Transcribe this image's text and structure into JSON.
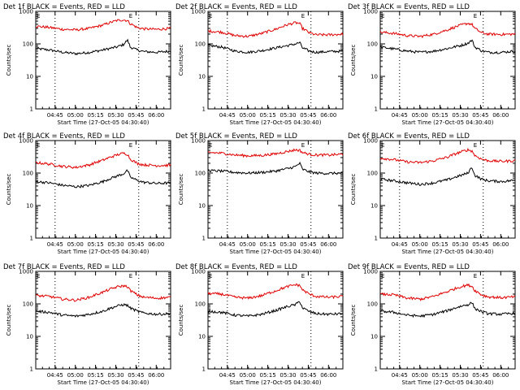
{
  "figure": {
    "panel_titles": [
      "Det 1f BLACK = Events, RED = LLD",
      "Det 2f BLACK = Events, RED = LLD",
      "Det 3f BLACK = Events, RED = LLD",
      "Det 4f BLACK = Events, RED = LLD",
      "Det 5f BLACK = Events, RED = LLD",
      "Det 6f BLACK = Events, RED = LLD",
      "Det 7f BLACK = Events, RED = LLD",
      "Det 8f BLACK = Events, RED = LLD",
      "Det 9f BLACK = Events, RED = LLD"
    ],
    "xlabel": "Start Time (27-Oct-05 04:30:40)",
    "ylabel": "Counts/sec",
    "x_ticks": [
      "04:45",
      "05:00",
      "05:15",
      "05:30",
      "05:45",
      "06:00"
    ],
    "y_ticks": [
      "1",
      "10",
      "100",
      "1000"
    ],
    "marker_start": "E",
    "marker_end": "E",
    "colors": {
      "events": "#000000",
      "lld": "#e00000",
      "axes": "#000000",
      "background": "#ffffff"
    }
  },
  "chart_data": [
    {
      "type": "line",
      "title": "Det 1f BLACK = Events, RED = LLD",
      "xlabel": "Start Time (27-Oct-05 04:30:40)",
      "ylabel": "Counts/sec",
      "x_unit": "minutes after 04:30:40",
      "xlim": [
        0,
        100
      ],
      "ylim": [
        1,
        1000
      ],
      "y_scale": "log",
      "x_tick_labels": [
        "04:45",
        "05:00",
        "05:15",
        "05:30",
        "05:45",
        "06:00"
      ],
      "vertical_dotted_lines_at": [
        "04:45",
        "05:47"
      ],
      "x": [
        0,
        10,
        20,
        30,
        40,
        50,
        60,
        65,
        68,
        70,
        75,
        80,
        90,
        100
      ],
      "series": [
        {
          "name": "Events",
          "color": "#000000",
          "values": [
            72,
            65,
            55,
            50,
            55,
            65,
            80,
            95,
            130,
            80,
            65,
            58,
            55,
            60
          ]
        },
        {
          "name": "LLD",
          "color": "#e00000",
          "values": [
            350,
            320,
            280,
            270,
            300,
            380,
            520,
            550,
            520,
            420,
            320,
            290,
            280,
            300
          ]
        }
      ]
    },
    {
      "type": "line",
      "title": "Det 2f BLACK = Events, RED = LLD",
      "xlabel": "Start Time (27-Oct-05 04:30:40)",
      "ylabel": "Counts/sec",
      "x_unit": "minutes after 04:30:40",
      "xlim": [
        0,
        100
      ],
      "ylim": [
        1,
        1000
      ],
      "y_scale": "log",
      "x_tick_labels": [
        "04:45",
        "05:00",
        "05:15",
        "05:30",
        "05:45",
        "06:00"
      ],
      "vertical_dotted_lines_at": [
        "04:45",
        "05:47"
      ],
      "x": [
        0,
        10,
        20,
        30,
        40,
        50,
        60,
        65,
        68,
        70,
        75,
        80,
        90,
        100
      ],
      "series": [
        {
          "name": "Events",
          "color": "#000000",
          "values": [
            90,
            80,
            60,
            55,
            62,
            75,
            90,
            100,
            110,
            75,
            60,
            55,
            58,
            60
          ]
        },
        {
          "name": "LLD",
          "color": "#e00000",
          "values": [
            250,
            230,
            180,
            170,
            210,
            280,
            400,
            450,
            420,
            300,
            220,
            190,
            190,
            200
          ]
        }
      ]
    },
    {
      "type": "line",
      "title": "Det 3f BLACK = Events, RED = LLD",
      "xlabel": "Start Time (27-Oct-05 04:30:40)",
      "ylabel": "Counts/sec",
      "x_unit": "minutes after 04:30:40",
      "xlim": [
        0,
        100
      ],
      "ylim": [
        1,
        1000
      ],
      "y_scale": "log",
      "x_tick_labels": [
        "04:45",
        "05:00",
        "05:15",
        "05:30",
        "05:45",
        "06:00"
      ],
      "vertical_dotted_lines_at": [
        "04:45",
        "05:47"
      ],
      "x": [
        0,
        10,
        20,
        30,
        40,
        50,
        60,
        65,
        68,
        70,
        75,
        80,
        90,
        100
      ],
      "series": [
        {
          "name": "Events",
          "color": "#000000",
          "values": [
            80,
            70,
            60,
            55,
            60,
            72,
            90,
            105,
            130,
            80,
            62,
            55,
            55,
            60
          ]
        },
        {
          "name": "LLD",
          "color": "#e00000",
          "values": [
            230,
            210,
            180,
            170,
            200,
            270,
            380,
            430,
            400,
            300,
            220,
            200,
            195,
            200
          ]
        }
      ]
    },
    {
      "type": "line",
      "title": "Det 4f BLACK = Events, RED = LLD",
      "xlabel": "Start Time (27-Oct-05 04:30:40)",
      "ylabel": "Counts/sec",
      "x_unit": "minutes after 04:30:40",
      "xlim": [
        0,
        100
      ],
      "ylim": [
        1,
        1000
      ],
      "y_scale": "log",
      "x_tick_labels": [
        "04:45",
        "05:00",
        "05:15",
        "05:30",
        "05:45",
        "06:00"
      ],
      "vertical_dotted_lines_at": [
        "04:45",
        "05:47"
      ],
      "x": [
        0,
        10,
        20,
        30,
        40,
        50,
        60,
        65,
        68,
        70,
        75,
        80,
        90,
        100
      ],
      "series": [
        {
          "name": "Events",
          "color": "#000000",
          "values": [
            55,
            50,
            42,
            38,
            42,
            55,
            80,
            95,
            120,
            75,
            60,
            52,
            48,
            50
          ]
        },
        {
          "name": "LLD",
          "color": "#e00000",
          "values": [
            210,
            190,
            160,
            150,
            180,
            250,
            360,
            410,
            380,
            270,
            200,
            180,
            170,
            175
          ]
        }
      ]
    },
    {
      "type": "line",
      "title": "Det 5f BLACK = Events, RED = LLD",
      "xlabel": "Start Time (27-Oct-05 04:30:40)",
      "ylabel": "Counts/sec",
      "x_unit": "minutes after 04:30:40",
      "xlim": [
        0,
        100
      ],
      "ylim": [
        1,
        1000
      ],
      "y_scale": "log",
      "x_tick_labels": [
        "04:45",
        "05:00",
        "05:15",
        "05:30",
        "05:45",
        "06:00"
      ],
      "vertical_dotted_lines_at": [
        "04:45",
        "05:47"
      ],
      "x": [
        0,
        10,
        20,
        30,
        40,
        50,
        60,
        65,
        68,
        70,
        75,
        80,
        90,
        100
      ],
      "series": [
        {
          "name": "Events",
          "color": "#000000",
          "values": [
            120,
            115,
            105,
            100,
            105,
            115,
            140,
            160,
            200,
            130,
            110,
            100,
            98,
            100
          ]
        },
        {
          "name": "LLD",
          "color": "#e00000",
          "values": [
            430,
            410,
            360,
            340,
            350,
            390,
            470,
            520,
            500,
            430,
            380,
            360,
            360,
            380
          ]
        }
      ]
    },
    {
      "type": "line",
      "title": "Det 6f BLACK = Events, RED = LLD",
      "xlabel": "Start Time (27-Oct-05 04:30:40)",
      "ylabel": "Counts/sec",
      "x_unit": "minutes after 04:30:40",
      "xlim": [
        0,
        100
      ],
      "ylim": [
        1,
        1000
      ],
      "y_scale": "log",
      "x_tick_labels": [
        "04:45",
        "05:00",
        "05:15",
        "05:30",
        "05:45",
        "06:00"
      ],
      "vertical_dotted_lines_at": [
        "04:45",
        "05:47"
      ],
      "x": [
        0,
        10,
        20,
        30,
        40,
        50,
        60,
        65,
        68,
        70,
        75,
        80,
        90,
        100
      ],
      "series": [
        {
          "name": "Events",
          "color": "#000000",
          "values": [
            65,
            58,
            50,
            45,
            50,
            62,
            85,
            100,
            150,
            85,
            65,
            58,
            55,
            60
          ]
        },
        {
          "name": "LLD",
          "color": "#e00000",
          "values": [
            290,
            260,
            220,
            210,
            240,
            310,
            450,
            520,
            480,
            350,
            270,
            240,
            230,
            240
          ]
        }
      ]
    },
    {
      "type": "line",
      "title": "Det 7f BLACK = Events, RED = LLD",
      "xlabel": "Start Time (27-Oct-05 04:30:40)",
      "ylabel": "Counts/sec",
      "x_unit": "minutes after 04:30:40",
      "xlim": [
        0,
        100
      ],
      "ylim": [
        1,
        1000
      ],
      "y_scale": "log",
      "x_tick_labels": [
        "04:45",
        "05:00",
        "05:15",
        "05:30",
        "05:45",
        "06:00"
      ],
      "vertical_dotted_lines_at": [
        "04:45",
        "05:47"
      ],
      "x": [
        0,
        10,
        20,
        30,
        40,
        50,
        60,
        65,
        68,
        70,
        75,
        80,
        90,
        100
      ],
      "series": [
        {
          "name": "Events",
          "color": "#000000",
          "values": [
            60,
            55,
            45,
            42,
            48,
            60,
            85,
            95,
            90,
            75,
            60,
            52,
            48,
            50
          ]
        },
        {
          "name": "LLD",
          "color": "#e00000",
          "values": [
            180,
            170,
            140,
            130,
            160,
            230,
            330,
            360,
            340,
            260,
            190,
            160,
            150,
            160
          ]
        }
      ]
    },
    {
      "type": "line",
      "title": "Det 8f BLACK = Events, RED = LLD",
      "xlabel": "Start Time (27-Oct-05 04:30:40)",
      "ylabel": "Counts/sec",
      "x_unit": "minutes after 04:30:40",
      "xlim": [
        0,
        100
      ],
      "ylim": [
        1,
        1000
      ],
      "y_scale": "log",
      "x_tick_labels": [
        "04:45",
        "05:00",
        "05:15",
        "05:30",
        "05:45",
        "06:00"
      ],
      "vertical_dotted_lines_at": [
        "04:45",
        "05:47"
      ],
      "x": [
        0,
        10,
        20,
        30,
        40,
        50,
        60,
        65,
        68,
        70,
        75,
        80,
        90,
        100
      ],
      "series": [
        {
          "name": "Events",
          "color": "#000000",
          "values": [
            60,
            55,
            45,
            42,
            48,
            62,
            85,
            95,
            120,
            75,
            58,
            50,
            48,
            50
          ]
        },
        {
          "name": "LLD",
          "color": "#e00000",
          "values": [
            210,
            200,
            160,
            150,
            180,
            250,
            350,
            390,
            370,
            270,
            200,
            170,
            160,
            170
          ]
        }
      ]
    },
    {
      "type": "line",
      "title": "Det 9f BLACK = Events, RED = LLD",
      "xlabel": "Start Time (27-Oct-05 04:30:40)",
      "ylabel": "Counts/sec",
      "x_unit": "minutes after 04:30:40",
      "xlim": [
        0,
        100
      ],
      "ylim": [
        1,
        1000
      ],
      "y_scale": "log",
      "x_tick_labels": [
        "04:45",
        "05:00",
        "05:15",
        "05:30",
        "05:45",
        "06:00"
      ],
      "vertical_dotted_lines_at": [
        "04:45",
        "05:47"
      ],
      "x": [
        0,
        10,
        20,
        30,
        40,
        50,
        60,
        65,
        68,
        70,
        75,
        80,
        90,
        100
      ],
      "series": [
        {
          "name": "Events",
          "color": "#000000",
          "values": [
            60,
            55,
            45,
            42,
            48,
            62,
            85,
            95,
            110,
            72,
            58,
            50,
            48,
            52
          ]
        },
        {
          "name": "LLD",
          "color": "#e00000",
          "values": [
            200,
            190,
            150,
            140,
            170,
            240,
            340,
            380,
            350,
            260,
            190,
            165,
            155,
            165
          ]
        }
      ]
    }
  ]
}
